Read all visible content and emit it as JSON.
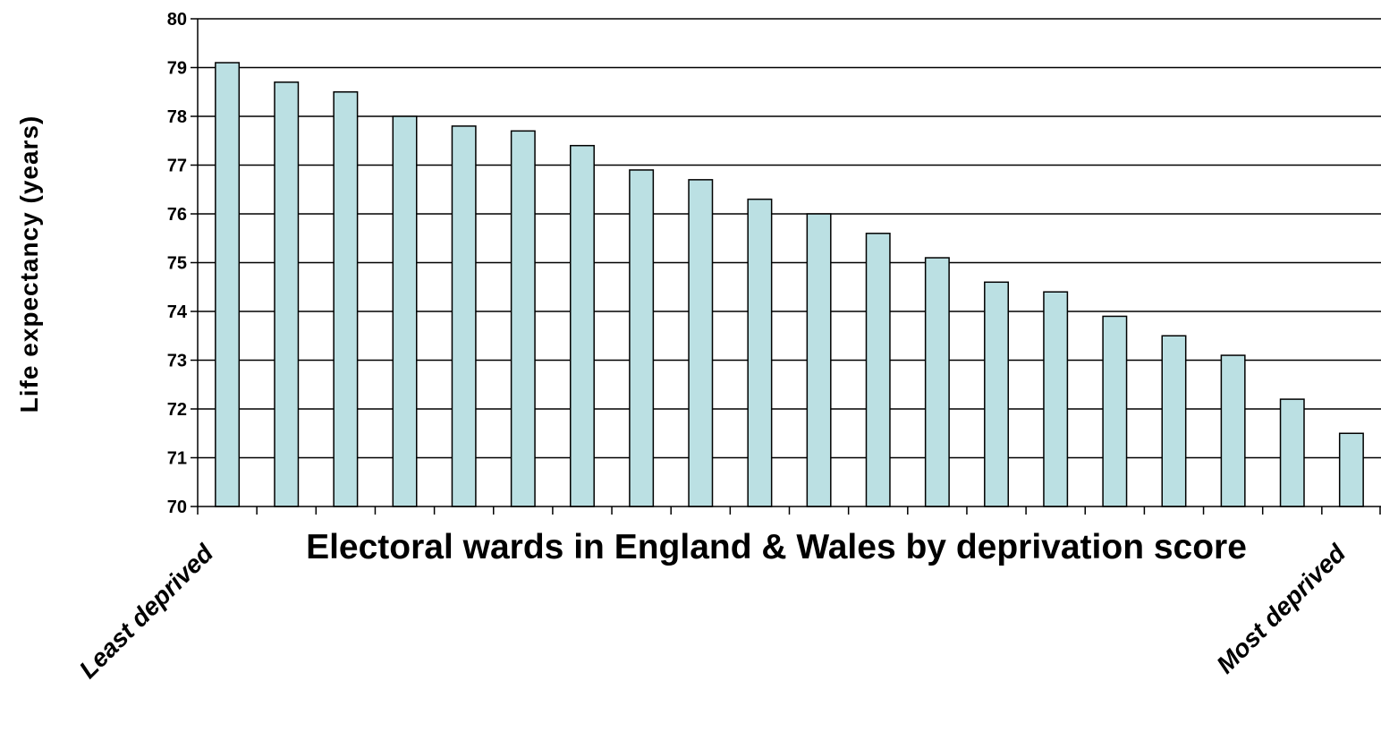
{
  "chart_data": {
    "type": "bar",
    "title": "",
    "xlabel": "Electoral wards in England & Wales by deprivation score",
    "ylabel": "Life expectancy (years)",
    "ylim": [
      70,
      80
    ],
    "yticks": [
      70,
      71,
      72,
      73,
      74,
      75,
      76,
      77,
      78,
      79,
      80
    ],
    "grid": true,
    "legend": "none",
    "x_end_labels": {
      "left": "Least deprived",
      "right": "Most deprived"
    },
    "values": [
      79.1,
      78.7,
      78.5,
      78.0,
      77.8,
      77.7,
      77.4,
      76.9,
      76.7,
      76.3,
      76.0,
      75.6,
      75.1,
      74.6,
      74.4,
      73.9,
      73.5,
      73.1,
      72.2,
      71.5
    ],
    "colors": {
      "bar_fill": "#BBE0E3",
      "bar_stroke": "#000000",
      "gridline": "#000000"
    }
  }
}
